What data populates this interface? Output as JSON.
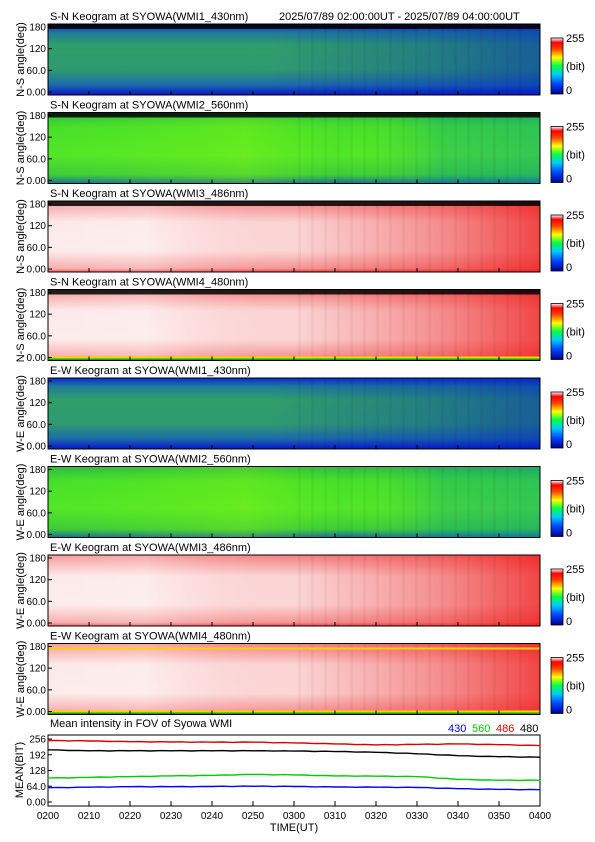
{
  "header": {
    "time_range": "2025/07/89 02:00:00UT - 2025/07/89 04:00:00UT"
  },
  "colorbar": {
    "max_label": "255",
    "unit_label": "(bit)",
    "min_label": "0"
  },
  "keogram_y_ticks": [
    "180",
    "120",
    "60.0",
    "0.00"
  ],
  "panels": [
    {
      "title": "S-N Keogram at SYOWA(WMI1_430nm)",
      "ylabel": "N-S angle(deg)",
      "colormap": "blue-green"
    },
    {
      "title": "S-N Keogram at SYOWA(WMI2_560nm)",
      "ylabel": "N-S angle(deg)",
      "colormap": "green"
    },
    {
      "title": "S-N Keogram at SYOWA(WMI3_486nm)",
      "ylabel": "N-S angle(deg)",
      "colormap": "red-white"
    },
    {
      "title": "S-N Keogram at SYOWA(WMI4_480nm)",
      "ylabel": "N-S angle(deg)",
      "colormap": "red-white"
    },
    {
      "title": "E-W Keogram at SYOWA(WMI1_430nm)",
      "ylabel": "W-E angle(deg)",
      "colormap": "blue-green"
    },
    {
      "title": "E-W Keogram at SYOWA(WMI2_560nm)",
      "ylabel": "W-E angle(deg)",
      "colormap": "green"
    },
    {
      "title": "E-W Keogram at SYOWA(WMI3_486nm)",
      "ylabel": "W-E angle(deg)",
      "colormap": "red-white"
    },
    {
      "title": "E-W Keogram at SYOWA(WMI4_480nm)",
      "ylabel": "W-E angle(deg)",
      "colormap": "red-white"
    }
  ],
  "colors": {
    "s430": "#0000ff",
    "s560": "#00cc00",
    "s486": "#dd0000",
    "s480": "#000000"
  },
  "chart_data": {
    "type": "line",
    "title": "Mean intensity in FOV of Syowa WMI",
    "xlabel": "TIME(UT)",
    "ylabel": "MEAN(BIT)",
    "ylim": [
      0,
      256
    ],
    "yticks": [
      "256",
      "192",
      "128",
      "64.0",
      "0.00"
    ],
    "x_ticks": [
      "0200",
      "0210",
      "0220",
      "0230",
      "0240",
      "0250",
      "0300",
      "0310",
      "0320",
      "0330",
      "0340",
      "0350",
      "0400"
    ],
    "x": [
      "0200",
      "0210",
      "0220",
      "0230",
      "0240",
      "0250",
      "0300",
      "0310",
      "0320",
      "0330",
      "0340",
      "0350",
      "0400"
    ],
    "series": [
      {
        "name": "430",
        "values": [
          58,
          60,
          62,
          62,
          63,
          64,
          63,
          61,
          60,
          59,
          54,
          51,
          50
        ]
      },
      {
        "name": "560",
        "values": [
          97,
          100,
          103,
          106,
          108,
          112,
          110,
          106,
          105,
          103,
          92,
          88,
          88
        ]
      },
      {
        "name": "486",
        "values": [
          250,
          248,
          245,
          244,
          243,
          243,
          240,
          236,
          232,
          234,
          236,
          233,
          229
        ]
      },
      {
        "name": "480",
        "values": [
          212,
          208,
          208,
          208,
          208,
          208,
          207,
          205,
          202,
          196,
          188,
          184,
          182
        ]
      }
    ]
  }
}
